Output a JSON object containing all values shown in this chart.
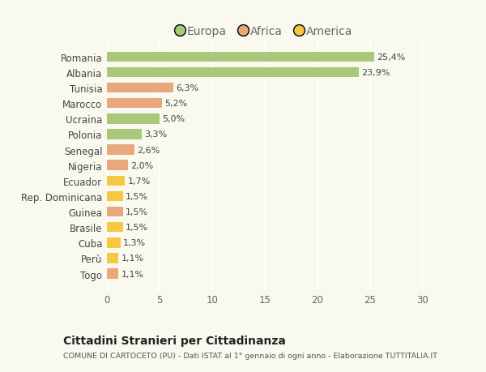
{
  "categories": [
    "Romania",
    "Albania",
    "Tunisia",
    "Marocco",
    "Ucraina",
    "Polonia",
    "Senegal",
    "Nigeria",
    "Ecuador",
    "Rep. Dominicana",
    "Guinea",
    "Brasile",
    "Cuba",
    "Perù",
    "Togo"
  ],
  "values": [
    25.4,
    23.9,
    6.3,
    5.2,
    5.0,
    3.3,
    2.6,
    2.0,
    1.7,
    1.5,
    1.5,
    1.5,
    1.3,
    1.1,
    1.1
  ],
  "labels": [
    "25,4%",
    "23,9%",
    "6,3%",
    "5,2%",
    "5,0%",
    "3,3%",
    "2,6%",
    "2,0%",
    "1,7%",
    "1,5%",
    "1,5%",
    "1,5%",
    "1,3%",
    "1,1%",
    "1,1%"
  ],
  "continent": [
    "Europa",
    "Europa",
    "Africa",
    "Africa",
    "Europa",
    "Europa",
    "Africa",
    "Africa",
    "America",
    "America",
    "Africa",
    "America",
    "America",
    "America",
    "Africa"
  ],
  "colors": {
    "Europa": "#a8c87a",
    "Africa": "#e8a87c",
    "America": "#f5c842"
  },
  "xlim": [
    0,
    30
  ],
  "xticks": [
    0,
    5,
    10,
    15,
    20,
    25,
    30
  ],
  "title": "Cittadini Stranieri per Cittadinanza",
  "subtitle": "COMUNE DI CARTOCETO (PU) - Dati ISTAT al 1° gennaio di ogni anno - Elaborazione TUTTITALIA.IT",
  "bg_color": "#f9f9f0",
  "grid_color": "#ffffff",
  "legend_colors": {
    "Europa": "#a8c87a",
    "Africa": "#e8a87c",
    "America": "#f5c842"
  }
}
